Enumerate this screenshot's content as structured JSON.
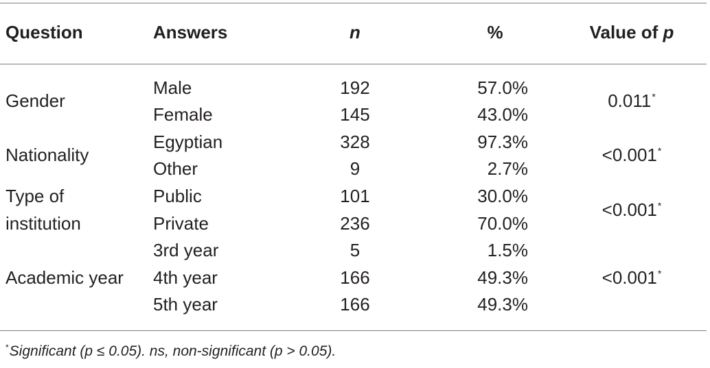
{
  "table": {
    "headers": {
      "question": "Question",
      "answers": "Answers",
      "n": "n",
      "percent": "%",
      "p_value_prefix": "Value of ",
      "p_value_var": "p"
    },
    "rows": [
      {
        "question": "Gender",
        "answer": "Male",
        "n": "192",
        "percent": "57.0%"
      },
      {
        "answer": "Female",
        "n": "145",
        "percent": "43.0%"
      },
      {
        "question": "Nationality",
        "answer": "Egyptian",
        "n": "328",
        "percent": "97.3%"
      },
      {
        "answer": "Other",
        "n": "9",
        "percent": "2.7%"
      },
      {
        "question_line1": "Type of",
        "answer": "Public",
        "n": "101",
        "percent": "30.0%"
      },
      {
        "question_line2": "institution",
        "answer": "Private",
        "n": "236",
        "percent": "70.0%"
      },
      {
        "answer": "3rd year",
        "n": "5",
        "percent": "1.5%"
      },
      {
        "question": "Academic year",
        "answer": "4th year",
        "n": "166",
        "percent": "49.3%"
      },
      {
        "answer": "5th year",
        "n": "166",
        "percent": "49.3%"
      }
    ],
    "p_values": [
      {
        "value": "0.011",
        "mark": "*"
      },
      {
        "value": "<0.001",
        "mark": "*"
      },
      {
        "value": "<0.001",
        "mark": "*"
      },
      {
        "value": "<0.001",
        "mark": "*"
      }
    ]
  },
  "footnote": {
    "mark": "*",
    "text": "Significant (p ≤ 0.05). ns, non-significant (p > 0.05)."
  }
}
